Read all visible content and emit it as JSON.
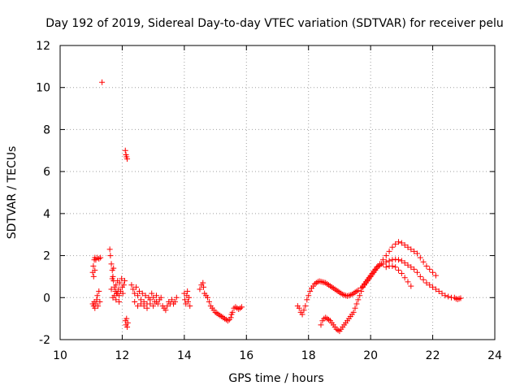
{
  "chart_data": {
    "type": "scatter",
    "title": "Day 192 of 2019, Sidereal Day-to-day VTEC variation (SDTVAR) for receiver pelu",
    "xlabel": "GPS time / hours",
    "ylabel": "SDTVAR / TECUs",
    "xlim": [
      10,
      24
    ],
    "ylim": [
      -2,
      12
    ],
    "xticks": [
      "10",
      "12",
      "14",
      "16",
      "18",
      "20",
      "22",
      "24"
    ],
    "yticks": [
      "-2",
      "0",
      "2",
      "4",
      "6",
      "8",
      "10",
      "12"
    ],
    "grid": true,
    "marker": "+",
    "colors": {
      "series": "#ff0000",
      "grid": "#a0a0a0",
      "axis": "#000000"
    },
    "series": [
      {
        "name": "SDTVAR",
        "points": [
          [
            11.05,
            -0.3
          ],
          [
            11.08,
            -0.4
          ],
          [
            11.1,
            -0.2
          ],
          [
            11.12,
            -0.5
          ],
          [
            11.15,
            -0.3
          ],
          [
            11.18,
            -0.1
          ],
          [
            11.2,
            0.1
          ],
          [
            11.22,
            -0.4
          ],
          [
            11.25,
            0.3
          ],
          [
            11.28,
            -0.2
          ],
          [
            11.05,
            1.2
          ],
          [
            11.07,
            1.5
          ],
          [
            11.1,
            1.8
          ],
          [
            11.12,
            1.9
          ],
          [
            11.15,
            1.8
          ],
          [
            11.2,
            1.9
          ],
          [
            11.25,
            1.85
          ],
          [
            11.3,
            1.9
          ],
          [
            11.08,
            1.0
          ],
          [
            11.12,
            1.3
          ],
          [
            11.35,
            10.25
          ],
          [
            11.6,
            2.3
          ],
          [
            11.62,
            2.0
          ],
          [
            11.65,
            1.6
          ],
          [
            11.68,
            1.3
          ],
          [
            11.7,
            1.0
          ],
          [
            11.72,
            0.8
          ],
          [
            11.75,
            0.5
          ],
          [
            11.78,
            0.3
          ],
          [
            11.8,
            0.6
          ],
          [
            11.82,
            0.2
          ],
          [
            11.85,
            0.8
          ],
          [
            11.88,
            0.4
          ],
          [
            11.9,
            0.1
          ],
          [
            11.92,
            0.7
          ],
          [
            11.95,
            0.3
          ],
          [
            11.98,
            0.9
          ],
          [
            12.0,
            0.5
          ],
          [
            12.02,
            0.2
          ],
          [
            12.05,
            0.6
          ],
          [
            12.08,
            0.8
          ],
          [
            11.7,
            0.0
          ],
          [
            11.75,
            0.1
          ],
          [
            11.8,
            -0.1
          ],
          [
            11.85,
            0.2
          ],
          [
            11.9,
            -0.2
          ],
          [
            11.65,
            0.4
          ],
          [
            11.72,
            1.4
          ],
          [
            11.68,
            0.9
          ],
          [
            12.1,
            7.0
          ],
          [
            12.12,
            6.8
          ],
          [
            12.14,
            6.7
          ],
          [
            12.16,
            6.6
          ],
          [
            12.1,
            -1.1
          ],
          [
            12.12,
            -1.3
          ],
          [
            12.14,
            -1.0
          ],
          [
            12.16,
            -1.4
          ],
          [
            12.18,
            -1.2
          ],
          [
            12.3,
            0.6
          ],
          [
            12.35,
            0.4
          ],
          [
            12.4,
            0.2
          ],
          [
            12.45,
            0.5
          ],
          [
            12.5,
            0.1
          ],
          [
            12.55,
            0.3
          ],
          [
            12.6,
            -0.1
          ],
          [
            12.65,
            0.2
          ],
          [
            12.7,
            -0.2
          ],
          [
            12.75,
            0.1
          ],
          [
            12.8,
            -0.3
          ],
          [
            12.85,
            0.0
          ],
          [
            12.9,
            -0.1
          ],
          [
            12.95,
            0.2
          ],
          [
            13.0,
            0.0
          ],
          [
            13.05,
            -0.2
          ],
          [
            13.1,
            0.1
          ],
          [
            13.15,
            -0.3
          ],
          [
            13.2,
            -0.1
          ],
          [
            13.25,
            0.0
          ],
          [
            12.4,
            -0.2
          ],
          [
            12.5,
            -0.4
          ],
          [
            12.6,
            -0.3
          ],
          [
            12.7,
            -0.4
          ],
          [
            12.8,
            -0.5
          ],
          [
            12.9,
            -0.3
          ],
          [
            13.0,
            -0.4
          ],
          [
            13.1,
            -0.2
          ],
          [
            13.3,
            -0.4
          ],
          [
            13.35,
            -0.5
          ],
          [
            13.4,
            -0.6
          ],
          [
            13.45,
            -0.4
          ],
          [
            13.5,
            -0.2
          ],
          [
            13.55,
            -0.3
          ],
          [
            13.6,
            -0.1
          ],
          [
            13.65,
            -0.3
          ],
          [
            13.7,
            -0.2
          ],
          [
            13.75,
            0.0
          ],
          [
            14.0,
            0.2
          ],
          [
            14.02,
            -0.1
          ],
          [
            14.05,
            -0.3
          ],
          [
            14.08,
            0.1
          ],
          [
            14.1,
            0.3
          ],
          [
            14.12,
            -0.2
          ],
          [
            14.15,
            0.0
          ],
          [
            14.18,
            -0.4
          ],
          [
            14.5,
            0.4
          ],
          [
            14.55,
            0.6
          ],
          [
            14.6,
            0.7
          ],
          [
            14.62,
            0.5
          ],
          [
            14.65,
            0.2
          ],
          [
            14.7,
            0.1
          ],
          [
            14.75,
            0.0
          ],
          [
            14.8,
            -0.2
          ],
          [
            14.85,
            -0.4
          ],
          [
            14.9,
            -0.5
          ],
          [
            14.95,
            -0.6
          ],
          [
            15.0,
            -0.7
          ],
          [
            15.05,
            -0.75
          ],
          [
            15.1,
            -0.8
          ],
          [
            15.15,
            -0.85
          ],
          [
            15.2,
            -0.9
          ],
          [
            15.25,
            -0.95
          ],
          [
            15.3,
            -1.0
          ],
          [
            15.35,
            -1.05
          ],
          [
            15.4,
            -1.1
          ],
          [
            15.45,
            -1.05
          ],
          [
            15.5,
            -0.95
          ],
          [
            15.52,
            -0.8
          ],
          [
            15.55,
            -0.7
          ],
          [
            15.6,
            -0.5
          ],
          [
            15.65,
            -0.45
          ],
          [
            15.7,
            -0.5
          ],
          [
            15.75,
            -0.55
          ],
          [
            15.8,
            -0.5
          ],
          [
            15.85,
            -0.45
          ],
          [
            17.65,
            -0.4
          ],
          [
            17.7,
            -0.5
          ],
          [
            17.75,
            -0.7
          ],
          [
            17.8,
            -0.8
          ],
          [
            17.85,
            -0.6
          ],
          [
            17.9,
            -0.4
          ],
          [
            17.95,
            -0.1
          ],
          [
            18.0,
            0.1
          ],
          [
            18.05,
            0.3
          ],
          [
            18.1,
            0.45
          ],
          [
            18.15,
            0.55
          ],
          [
            18.2,
            0.65
          ],
          [
            18.25,
            0.7
          ],
          [
            18.3,
            0.75
          ],
          [
            18.35,
            0.78
          ],
          [
            18.4,
            0.76
          ],
          [
            18.45,
            0.74
          ],
          [
            18.5,
            0.72
          ],
          [
            18.55,
            0.7
          ],
          [
            18.6,
            0.65
          ],
          [
            18.65,
            0.6
          ],
          [
            18.7,
            0.55
          ],
          [
            18.75,
            0.5
          ],
          [
            18.8,
            0.45
          ],
          [
            18.85,
            0.4
          ],
          [
            18.9,
            0.35
          ],
          [
            18.95,
            0.3
          ],
          [
            19.0,
            0.25
          ],
          [
            19.05,
            0.2
          ],
          [
            19.1,
            0.15
          ],
          [
            19.15,
            0.12
          ],
          [
            19.2,
            0.1
          ],
          [
            19.25,
            0.08
          ],
          [
            19.3,
            0.1
          ],
          [
            19.35,
            0.12
          ],
          [
            19.4,
            0.15
          ],
          [
            19.45,
            0.2
          ],
          [
            19.5,
            0.25
          ],
          [
            19.55,
            0.3
          ],
          [
            19.6,
            0.35
          ],
          [
            18.4,
            -1.3
          ],
          [
            18.45,
            -1.1
          ],
          [
            18.5,
            -1.0
          ],
          [
            18.55,
            -0.95
          ],
          [
            18.6,
            -1.0
          ],
          [
            18.65,
            -1.05
          ],
          [
            18.7,
            -1.1
          ],
          [
            18.75,
            -1.2
          ],
          [
            18.8,
            -1.3
          ],
          [
            18.85,
            -1.4
          ],
          [
            18.9,
            -1.5
          ],
          [
            18.95,
            -1.55
          ],
          [
            19.0,
            -1.6
          ],
          [
            19.05,
            -1.5
          ],
          [
            19.1,
            -1.4
          ],
          [
            19.15,
            -1.3
          ],
          [
            19.2,
            -1.2
          ],
          [
            19.25,
            -1.1
          ],
          [
            19.3,
            -1.0
          ],
          [
            19.35,
            -0.9
          ],
          [
            19.4,
            -0.8
          ],
          [
            19.45,
            -0.7
          ],
          [
            19.5,
            -0.5
          ],
          [
            19.55,
            -0.3
          ],
          [
            19.6,
            -0.1
          ],
          [
            19.65,
            0.1
          ],
          [
            19.7,
            0.3
          ],
          [
            19.75,
            0.5
          ],
          [
            19.8,
            0.6
          ],
          [
            19.85,
            0.7
          ],
          [
            19.7,
            0.45
          ],
          [
            19.75,
            0.55
          ],
          [
            19.8,
            0.65
          ],
          [
            19.85,
            0.75
          ],
          [
            19.9,
            0.85
          ],
          [
            19.95,
            0.95
          ],
          [
            20.0,
            1.05
          ],
          [
            20.05,
            1.15
          ],
          [
            20.1,
            1.25
          ],
          [
            20.15,
            1.35
          ],
          [
            19.9,
            0.8
          ],
          [
            19.95,
            0.9
          ],
          [
            20.0,
            1.0
          ],
          [
            20.05,
            1.1
          ],
          [
            20.1,
            1.2
          ],
          [
            20.15,
            1.3
          ],
          [
            20.2,
            1.4
          ],
          [
            20.25,
            1.5
          ],
          [
            20.3,
            1.55
          ],
          [
            20.35,
            1.6
          ],
          [
            20.2,
            1.45
          ],
          [
            20.3,
            1.6
          ],
          [
            20.4,
            1.8
          ],
          [
            20.5,
            2.0
          ],
          [
            20.6,
            2.2
          ],
          [
            20.7,
            2.4
          ],
          [
            20.8,
            2.55
          ],
          [
            20.9,
            2.65
          ],
          [
            21.0,
            2.6
          ],
          [
            21.1,
            2.5
          ],
          [
            21.2,
            2.4
          ],
          [
            21.3,
            2.3
          ],
          [
            21.4,
            2.2
          ],
          [
            21.5,
            2.1
          ],
          [
            21.6,
            1.9
          ],
          [
            21.7,
            1.7
          ],
          [
            21.8,
            1.5
          ],
          [
            21.9,
            1.35
          ],
          [
            22.0,
            1.2
          ],
          [
            22.1,
            1.05
          ],
          [
            20.4,
            1.6
          ],
          [
            20.5,
            1.7
          ],
          [
            20.6,
            1.75
          ],
          [
            20.7,
            1.8
          ],
          [
            20.8,
            1.82
          ],
          [
            20.9,
            1.8
          ],
          [
            21.0,
            1.75
          ],
          [
            21.1,
            1.65
          ],
          [
            21.2,
            1.55
          ],
          [
            21.3,
            1.45
          ],
          [
            21.4,
            1.35
          ],
          [
            21.5,
            1.2
          ],
          [
            21.6,
            1.0
          ],
          [
            21.7,
            0.85
          ],
          [
            21.8,
            0.7
          ],
          [
            21.9,
            0.6
          ],
          [
            22.0,
            0.5
          ],
          [
            22.1,
            0.4
          ],
          [
            22.2,
            0.3
          ],
          [
            22.3,
            0.2
          ],
          [
            22.4,
            0.1
          ],
          [
            22.5,
            0.05
          ],
          [
            22.6,
            0.0
          ],
          [
            22.7,
            0.0
          ],
          [
            22.75,
            -0.05
          ],
          [
            22.8,
            -0.08
          ],
          [
            22.85,
            -0.05
          ],
          [
            22.9,
            -0.03
          ],
          [
            20.5,
            1.45
          ],
          [
            20.6,
            1.5
          ],
          [
            20.7,
            1.5
          ],
          [
            20.8,
            1.45
          ],
          [
            20.9,
            1.3
          ],
          [
            21.0,
            1.15
          ],
          [
            21.1,
            0.95
          ],
          [
            21.2,
            0.75
          ],
          [
            21.3,
            0.55
          ]
        ]
      }
    ]
  }
}
